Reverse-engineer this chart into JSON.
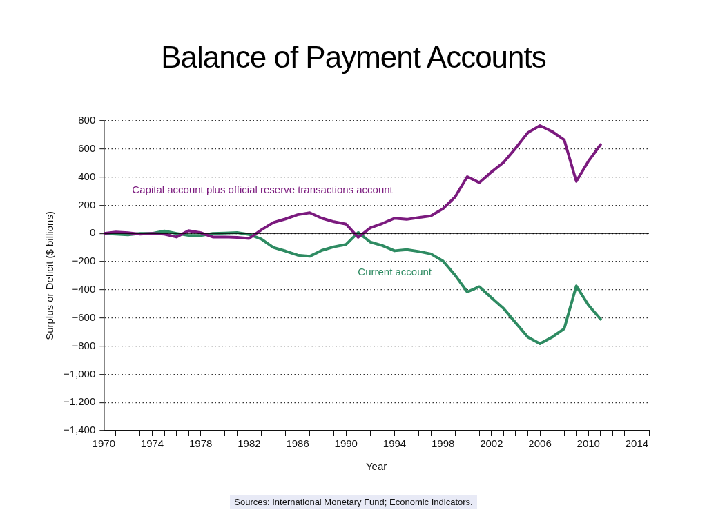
{
  "chart_data": {
    "type": "line",
    "title": "Balance of Payment Accounts",
    "xlabel": "Year",
    "ylabel": "Surplus or Deficit ($ billions)",
    "x": [
      1970,
      1971,
      1972,
      1973,
      1974,
      1975,
      1976,
      1977,
      1978,
      1979,
      1980,
      1981,
      1982,
      1983,
      1984,
      1985,
      1986,
      1987,
      1988,
      1989,
      1990,
      1991,
      1992,
      1993,
      1994,
      1995,
      1996,
      1997,
      1998,
      1999,
      2000,
      2001,
      2002,
      2003,
      2004,
      2005,
      2006,
      2007,
      2008,
      2009,
      2010,
      2011
    ],
    "series": [
      {
        "name": "Capital account plus official reserve transactions account",
        "color": "#7b1a7e",
        "values": [
          0,
          10,
          5,
          -5,
          0,
          -5,
          -25,
          20,
          5,
          -25,
          -25,
          -28,
          -35,
          25,
          78,
          103,
          133,
          147,
          108,
          83,
          66,
          -27,
          40,
          71,
          108,
          100,
          113,
          125,
          176,
          260,
          403,
          361,
          437,
          505,
          606,
          716,
          766,
          724,
          665,
          370,
          513,
          631
        ]
      },
      {
        "name": "Current account",
        "color": "#2e8b62",
        "values": [
          0,
          -5,
          -10,
          0,
          0,
          17,
          0,
          -14,
          -15,
          0,
          3,
          6,
          -7,
          -40,
          -100,
          -125,
          -154,
          -162,
          -120,
          -95,
          -78,
          7,
          -61,
          -86,
          -123,
          -115,
          -128,
          -145,
          -196,
          -297,
          -415,
          -378,
          -457,
          -533,
          -635,
          -736,
          -783,
          -736,
          -677,
          -373,
          -508,
          -609
        ]
      }
    ],
    "xlim": [
      1970,
      2015
    ],
    "xticks": [
      1970,
      {
        "value": 1971,
        "label": null
      },
      {
        "value": 1972,
        "label": null
      },
      {
        "value": 1973,
        "label": null
      },
      1974,
      {
        "value": 1975,
        "label": null
      },
      {
        "value": 1976,
        "label": null
      },
      {
        "value": 1977,
        "label": null
      },
      1978,
      {
        "value": 1979,
        "label": null
      },
      {
        "value": 1980,
        "label": null
      },
      {
        "value": 1981,
        "label": null
      },
      1982,
      {
        "value": 1983,
        "label": null
      },
      {
        "value": 1984,
        "label": null
      },
      {
        "value": 1985,
        "label": null
      },
      1986,
      {
        "value": 1987,
        "label": null
      },
      {
        "value": 1988,
        "label": null
      },
      {
        "value": 1989,
        "label": null
      },
      1990,
      {
        "value": 1991,
        "label": null
      },
      {
        "value": 1992,
        "label": null
      },
      {
        "value": 1993,
        "label": null
      },
      1994,
      {
        "value": 1995,
        "label": null
      },
      {
        "value": 1996,
        "label": null
      },
      {
        "value": 1997,
        "label": null
      },
      1998,
      {
        "value": 1999,
        "label": null
      },
      {
        "value": 2000,
        "label": null
      },
      {
        "value": 2001,
        "label": null
      },
      2002,
      {
        "value": 2003,
        "label": null
      },
      {
        "value": 2004,
        "label": null
      },
      {
        "value": 2005,
        "label": null
      },
      2006,
      {
        "value": 2007,
        "label": null
      },
      {
        "value": 2008,
        "label": null
      },
      {
        "value": 2009,
        "label": null
      },
      2010,
      {
        "value": 2011,
        "label": null
      },
      {
        "value": 2012,
        "label": null
      },
      {
        "value": 2013,
        "label": null
      },
      2014,
      {
        "value": 2015,
        "label": null
      }
    ],
    "ylim": [
      -1400,
      800
    ],
    "yticks": [
      800,
      600,
      400,
      200,
      0,
      {
        "value": -200,
        "label": "−200"
      },
      {
        "value": -400,
        "label": "−400"
      },
      {
        "value": -600,
        "label": "−600"
      },
      {
        "value": -800,
        "label": "−800"
      },
      {
        "value": -1000,
        "label": "−1,000"
      },
      {
        "value": -1200,
        "label": "−1,200"
      },
      {
        "value": -1400,
        "label": "−1,400"
      }
    ],
    "grid": "y",
    "legend": false,
    "marker": "none",
    "line_style": "solid",
    "ref_lines": [
      {
        "axis": "y",
        "value": 0,
        "color": "#000000"
      }
    ],
    "annotations": [
      "Sources: International Monetary Fund; Economic Indicators."
    ]
  }
}
